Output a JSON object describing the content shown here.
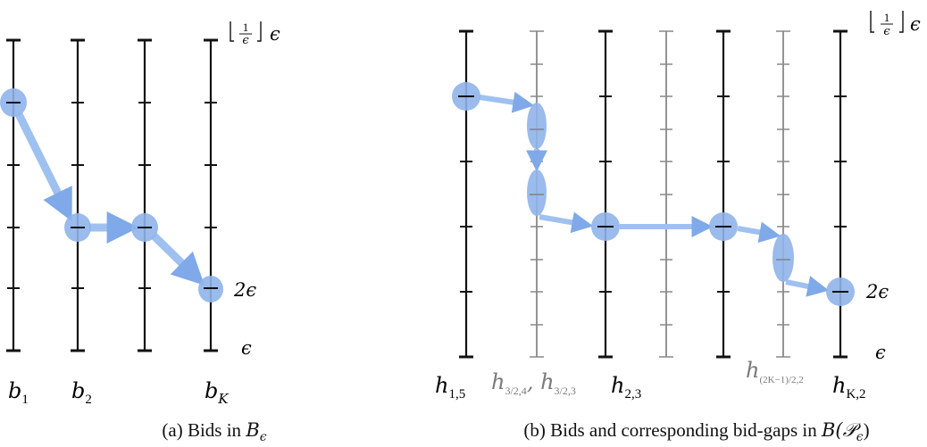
{
  "panel_a": {
    "caption_prefix": "(a) Bids in ",
    "caption_math": "B",
    "caption_sub": "ϵ",
    "top_label": "⌊1/ϵ⌋ ϵ",
    "label_2eps": "2ϵ",
    "label_eps": "ϵ",
    "axis_labels": [
      {
        "base": "b",
        "sub": "1"
      },
      {
        "base": "b",
        "sub": "2"
      },
      {
        "base": "b",
        "sub": "K"
      }
    ]
  },
  "panel_b": {
    "caption_prefix": "(b) Bids and corresponding bid-gaps in ",
    "caption_math": "B(𝒫",
    "caption_sub": "ϵ",
    "caption_suffix": ")",
    "top_label": "⌊1/ϵ⌋ ϵ",
    "label_2eps": "2ϵ",
    "label_eps": "ϵ",
    "axis_labels": [
      {
        "base": "h",
        "sub": "1,5"
      },
      {
        "base": "h",
        "sub": "3/2,4",
        "extra": ", h",
        "sub2": "3/2,3"
      },
      {
        "base": "h",
        "sub": "2,3"
      },
      {
        "base": "h",
        "sub": "(2K−1)/2,2"
      },
      {
        "base": "h",
        "sub": "K,2"
      }
    ]
  },
  "colors": {
    "node_fill": "#8fb4ea",
    "arrow": "#9fc1f0",
    "axis_black": "#111111",
    "axis_gray": "#888888",
    "gray_text": "#7a7a7a"
  }
}
